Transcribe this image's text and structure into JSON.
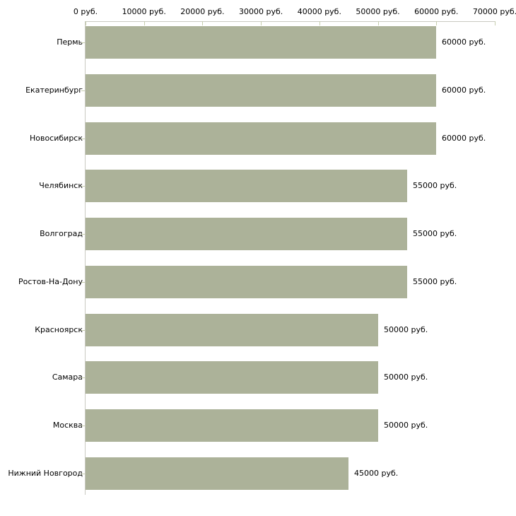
{
  "chart_data": {
    "type": "bar",
    "orientation": "horizontal",
    "title": "",
    "xlabel": "",
    "ylabel": "",
    "categories": [
      "Пермь",
      "Екатеринбург",
      "Новосибирск",
      "Челябинск",
      "Волгоград",
      "Ростов-На-Дону",
      "Красноярск",
      "Самара",
      "Москва",
      "Нижний Новгород"
    ],
    "values": [
      60000,
      60000,
      60000,
      55000,
      55000,
      55000,
      50000,
      50000,
      50000,
      45000
    ],
    "value_labels": [
      "60000 руб.",
      "60000 руб.",
      "60000 руб.",
      "55000 руб.",
      "55000 руб.",
      "55000 руб.",
      "50000 руб.",
      "50000 руб.",
      "50000 руб.",
      "45000 руб."
    ],
    "x_axis": {
      "position": "top",
      "range": [
        0,
        70000
      ],
      "ticks": [
        0,
        10000,
        20000,
        30000,
        40000,
        50000,
        60000,
        70000
      ],
      "tick_labels": [
        "0 руб.",
        "10000 руб.",
        "20000 руб.",
        "30000 руб.",
        "40000 руб.",
        "50000 руб.",
        "60000 руб.",
        "70000 руб."
      ]
    },
    "legend": null,
    "grid": false,
    "colors": {
      "bar_fill": "#acb299",
      "axis_line": "#c9c9c2",
      "tick_mark": "#c6cdad",
      "text": "#000000",
      "background": "#ffffff"
    }
  }
}
